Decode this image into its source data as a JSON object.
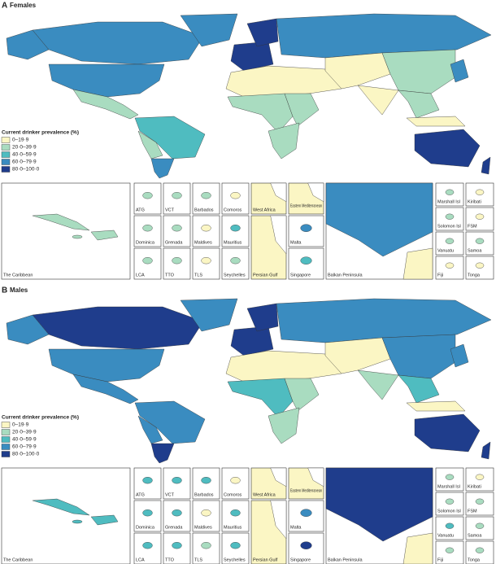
{
  "panels": [
    {
      "label": "A",
      "title": "Females",
      "legend_title": "Current drinker prevalence (%)",
      "legend_items": [
        {
          "label": "0–19·9",
          "color": "#fbf6c4"
        },
        {
          "label": "20·0–39·9",
          "color": "#a9dcc0"
        },
        {
          "label": "40·0–59·9",
          "color": "#4fbcc0"
        },
        {
          "label": "60·0–79·9",
          "color": "#3a8cc0"
        },
        {
          "label": "80·0–100·0",
          "color": "#1f3d8c"
        }
      ],
      "map_colors": [
        3,
        3,
        3,
        3,
        1,
        2,
        1,
        3,
        4,
        4,
        3,
        0,
        1,
        1,
        1,
        0,
        1,
        0,
        1,
        3,
        0,
        4,
        4
      ],
      "insets": [
        {
          "name": "The Caribbean",
          "color": "#a9dcc0"
        },
        {
          "name": "ATG",
          "color": "#a9dcc0"
        },
        {
          "name": "VCT",
          "color": "#a9dcc0"
        },
        {
          "name": "Barbados",
          "color": "#a9dcc0"
        },
        {
          "name": "Comoros",
          "color": "#fbf6c4"
        },
        {
          "name": "Dominica",
          "color": "#a9dcc0"
        },
        {
          "name": "Grenada",
          "color": "#a9dcc0"
        },
        {
          "name": "Maldives",
          "color": "#fbf6c4"
        },
        {
          "name": "Mauritius",
          "color": "#4fbcc0"
        },
        {
          "name": "LCA",
          "color": "#a9dcc0"
        },
        {
          "name": "TTO",
          "color": "#a9dcc0"
        },
        {
          "name": "TLS",
          "color": "#fbf6c4"
        },
        {
          "name": "Seychelles",
          "color": "#a9dcc0"
        },
        {
          "name": "West Africa",
          "color": "#fbf6c4"
        },
        {
          "name": "Eastern Mediterranean",
          "color": "#fbf6c4"
        },
        {
          "name": "Persian Gulf",
          "color": "#fbf6c4"
        },
        {
          "name": "Malta",
          "color": "#3a8cc0"
        },
        {
          "name": "Singapore",
          "color": "#4fbcc0"
        },
        {
          "name": "Balkan Peninsula",
          "color": "#3a8cc0"
        },
        {
          "name": "Marshall Isl",
          "color": "#a9dcc0"
        },
        {
          "name": "Kiribati",
          "color": "#fbf6c4"
        },
        {
          "name": "Solomon Isl",
          "color": "#a9dcc0"
        },
        {
          "name": "FSM",
          "color": "#fbf6c4"
        },
        {
          "name": "Vanuatu",
          "color": "#a9dcc0"
        },
        {
          "name": "Samoa",
          "color": "#a9dcc0"
        },
        {
          "name": "Fiji",
          "color": "#fbf6c4"
        },
        {
          "name": "Tonga",
          "color": "#fbf6c4"
        }
      ]
    },
    {
      "label": "B",
      "title": "Males",
      "legend_title": "Current drinker prevalence (%)",
      "legend_items": [
        {
          "label": "0–19·9",
          "color": "#fbf6c4"
        },
        {
          "label": "20·0–39·9",
          "color": "#a9dcc0"
        },
        {
          "label": "40·0–59·9",
          "color": "#4fbcc0"
        },
        {
          "label": "60·0–79·9",
          "color": "#3a8cc0"
        },
        {
          "label": "80·0–100·0",
          "color": "#1f3d8c"
        }
      ],
      "map_colors": [
        4,
        3,
        3,
        3,
        3,
        3,
        3,
        4,
        4,
        4,
        3,
        0,
        2,
        1,
        1,
        0,
        3,
        1,
        2,
        3,
        0,
        4,
        4
      ],
      "insets": [
        {
          "name": "The Caribbean",
          "color": "#4fbcc0"
        },
        {
          "name": "ATG",
          "color": "#4fbcc0"
        },
        {
          "name": "VCT",
          "color": "#4fbcc0"
        },
        {
          "name": "Barbados",
          "color": "#4fbcc0"
        },
        {
          "name": "Comoros",
          "color": "#fbf6c4"
        },
        {
          "name": "Dominica",
          "color": "#4fbcc0"
        },
        {
          "name": "Grenada",
          "color": "#4fbcc0"
        },
        {
          "name": "Maldives",
          "color": "#fbf6c4"
        },
        {
          "name": "Mauritius",
          "color": "#4fbcc0"
        },
        {
          "name": "LCA",
          "color": "#4fbcc0"
        },
        {
          "name": "TTO",
          "color": "#4fbcc0"
        },
        {
          "name": "TLS",
          "color": "#a9dcc0"
        },
        {
          "name": "Seychelles",
          "color": "#4fbcc0"
        },
        {
          "name": "West Africa",
          "color": "#fbf6c4"
        },
        {
          "name": "Eastern Mediterranean",
          "color": "#fbf6c4"
        },
        {
          "name": "Persian Gulf",
          "color": "#fbf6c4"
        },
        {
          "name": "Malta",
          "color": "#3a8cc0"
        },
        {
          "name": "Singapore",
          "color": "#1f3d8c"
        },
        {
          "name": "Balkan Peninsula",
          "color": "#1f3d8c"
        },
        {
          "name": "Marshall Isl",
          "color": "#a9dcc0"
        },
        {
          "name": "Kiribati",
          "color": "#fbf6c4"
        },
        {
          "name": "Solomon Isl",
          "color": "#a9dcc0"
        },
        {
          "name": "FSM",
          "color": "#a9dcc0"
        },
        {
          "name": "Vanuatu",
          "color": "#4fbcc0"
        },
        {
          "name": "Samoa",
          "color": "#a9dcc0"
        },
        {
          "name": "Fiji",
          "color": "#a9dcc0"
        },
        {
          "name": "Tonga",
          "color": "#a9dcc0"
        }
      ]
    }
  ]
}
